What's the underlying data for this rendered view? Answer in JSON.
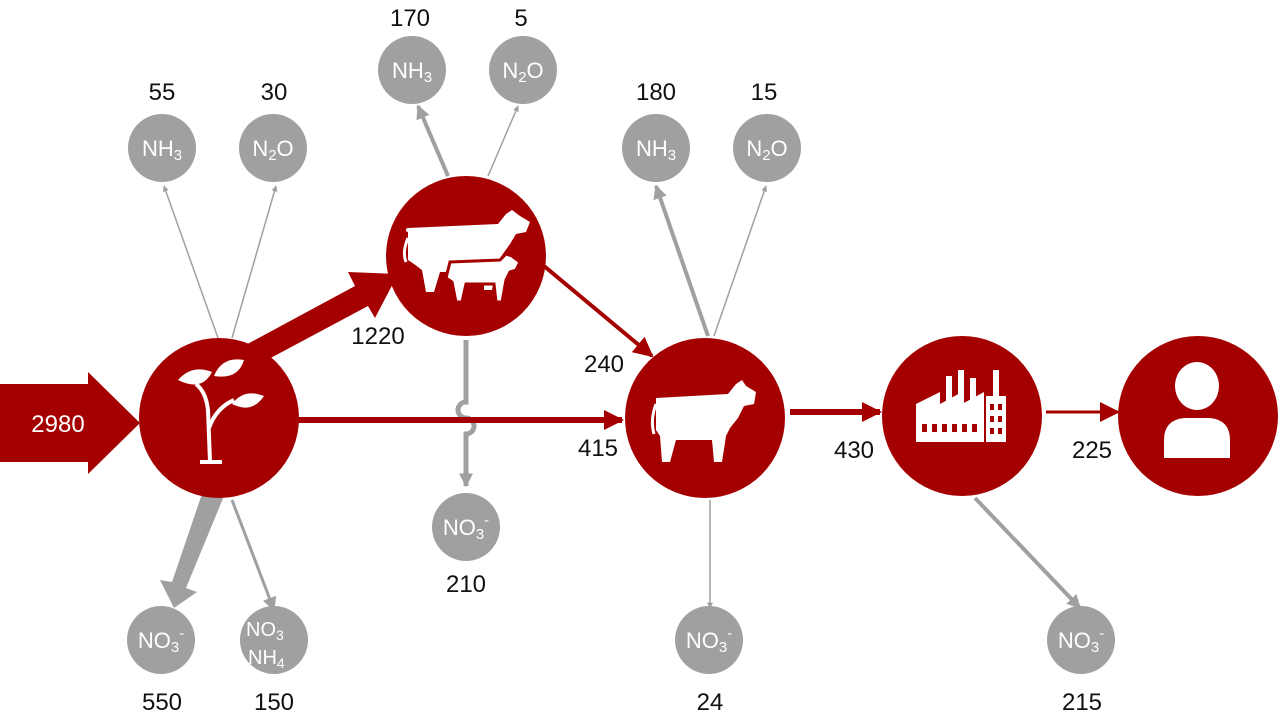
{
  "colors": {
    "accent": "#a50000",
    "emission": "#a0a0a0"
  },
  "input": {
    "value": "2980"
  },
  "stages": {
    "crops": {
      "icon": "plant-icon",
      "nh3": "55",
      "n2o": "30",
      "no3": "550",
      "no3_nh4": "150"
    },
    "livestock_feed": {
      "icon": "cow-and-calf-icon",
      "nh3": "170",
      "n2o": "5",
      "no3": "210"
    },
    "animal": {
      "icon": "cow-icon",
      "nh3": "180",
      "n2o": "15",
      "no3": "24"
    },
    "processing": {
      "icon": "factory-icon",
      "no3": "215"
    },
    "consumer": {
      "icon": "person-icon"
    }
  },
  "flows": {
    "crops_to_livestock": "1220",
    "livestock_to_animal": "240",
    "crops_to_animal": "415",
    "animal_to_processing": "430",
    "processing_to_consumer": "225"
  },
  "chem": {
    "nh3_main": "NH",
    "nh3_sub": "3",
    "n2o_pre": "N",
    "n2o_sub": "2",
    "n2o_post": "O",
    "no3_main": "NO",
    "no3_sub": "3",
    "no3_sup": "-",
    "nh4_main": "NH",
    "nh4_sub": "4"
  }
}
